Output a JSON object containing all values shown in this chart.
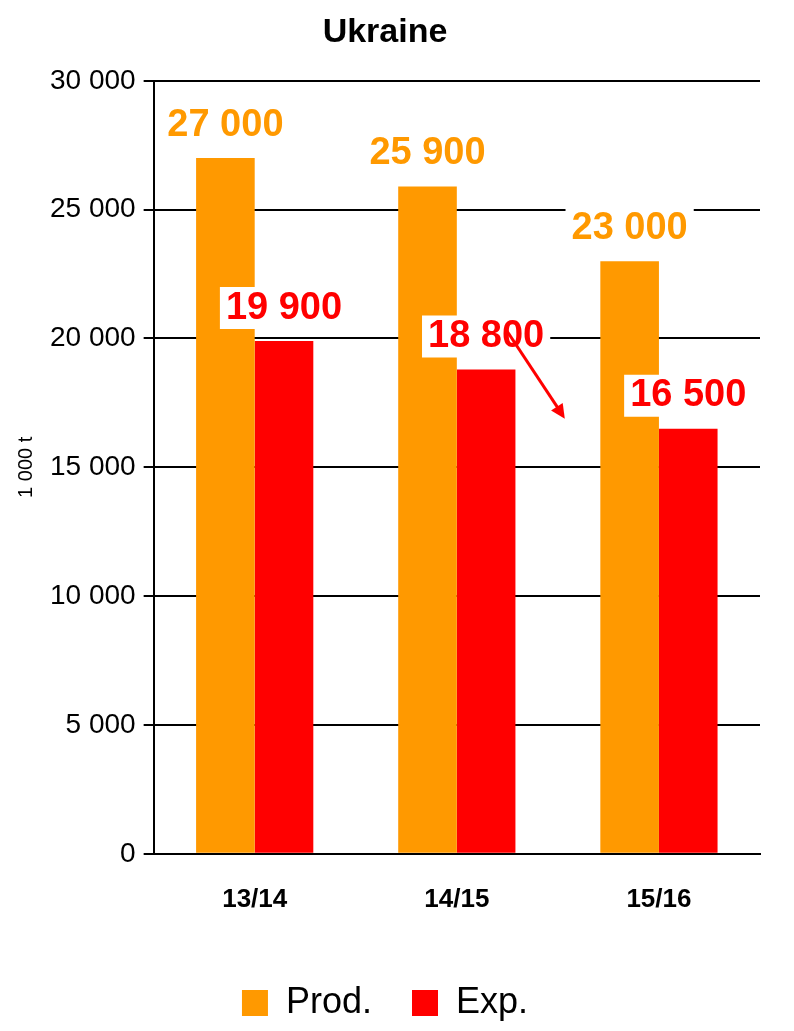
{
  "chart_data": {
    "type": "bar",
    "title": "Ukraine",
    "ylabel": "1 000 t",
    "categories": [
      "13/14",
      "14/15",
      "15/16"
    ],
    "series": [
      {
        "name": "Prod.",
        "color": "#ff9900",
        "values": [
          27000,
          25900,
          23000
        ],
        "value_labels": [
          "27 000",
          "25 900",
          "23 000"
        ]
      },
      {
        "name": "Exp.",
        "color": "#ff0000",
        "values": [
          19900,
          18800,
          16500
        ],
        "value_labels": [
          "19 900",
          "18 800",
          "16 500"
        ]
      }
    ],
    "ylim": [
      0,
      30000
    ],
    "yticks": [
      {
        "value": 0,
        "label": "0"
      },
      {
        "value": 5000,
        "label": "5 000"
      },
      {
        "value": 10000,
        "label": "10 000"
      },
      {
        "value": 15000,
        "label": "15 000"
      },
      {
        "value": 20000,
        "label": "20 000"
      },
      {
        "value": 25000,
        "label": "25 000"
      },
      {
        "value": 30000,
        "label": "30 000"
      }
    ],
    "grid": "y",
    "legend": "bottom"
  }
}
